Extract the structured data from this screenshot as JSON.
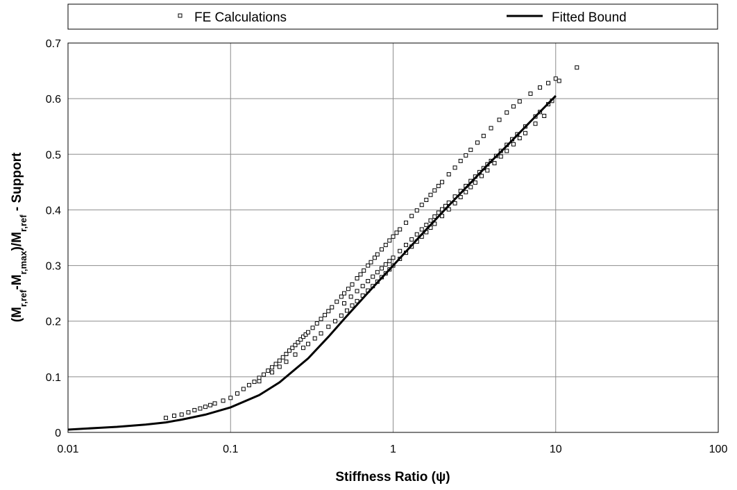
{
  "chart_data": {
    "type": "scatter",
    "x_scale": "log",
    "xlim": [
      0.01,
      100
    ],
    "ylim": [
      0,
      0.7
    ],
    "grid": true,
    "legend_placement": "top",
    "xlabel": "Stiffness Ratio (ψ)",
    "ylabel": {
      "parts": [
        {
          "t": "(M",
          "sub": false
        },
        {
          "t": "r,ref",
          "sub": true
        },
        {
          "t": "-M",
          "sub": false
        },
        {
          "t": "r,max",
          "sub": true
        },
        {
          "t": ")/M",
          "sub": false
        },
        {
          "t": "r,ref",
          "sub": true
        },
        {
          "t": " - Support",
          "sub": false
        }
      ]
    },
    "x_ticks": [
      {
        "value": 0.01,
        "label": "0.01"
      },
      {
        "value": 0.1,
        "label": "0.1"
      },
      {
        "value": 1,
        "label": "1"
      },
      {
        "value": 10,
        "label": "10"
      },
      {
        "value": 100,
        "label": "100"
      }
    ],
    "y_ticks": [
      {
        "value": 0,
        "label": "0"
      },
      {
        "value": 0.1,
        "label": "0.1"
      },
      {
        "value": 0.2,
        "label": "0.2"
      },
      {
        "value": 0.3,
        "label": "0.3"
      },
      {
        "value": 0.4,
        "label": "0.4"
      },
      {
        "value": 0.5,
        "label": "0.5"
      },
      {
        "value": 0.6,
        "label": "0.6"
      },
      {
        "value": 0.7,
        "label": "0.7"
      }
    ],
    "series": [
      {
        "name": "FE Calculations",
        "kind": "scatter",
        "marker": "open-square",
        "color": "#000000",
        "x": [
          0.04,
          0.045,
          0.05,
          0.055,
          0.06,
          0.065,
          0.07,
          0.075,
          0.08,
          0.09,
          0.1,
          0.11,
          0.12,
          0.13,
          0.14,
          0.15,
          0.16,
          0.17,
          0.18,
          0.19,
          0.2,
          0.21,
          0.22,
          0.23,
          0.24,
          0.25,
          0.26,
          0.27,
          0.28,
          0.29,
          0.3,
          0.32,
          0.34,
          0.36,
          0.38,
          0.4,
          0.42,
          0.45,
          0.48,
          0.5,
          0.53,
          0.56,
          0.6,
          0.63,
          0.66,
          0.7,
          0.73,
          0.77,
          0.8,
          0.85,
          0.9,
          0.95,
          1.0,
          1.05,
          1.1,
          1.2,
          1.3,
          1.4,
          1.5,
          1.6,
          1.7,
          1.8,
          1.9,
          2.0,
          2.2,
          2.4,
          2.6,
          2.8,
          3.0,
          3.3,
          3.6,
          4.0,
          4.5,
          5.0,
          5.5,
          6.0,
          7.0,
          8.0,
          9.0,
          10.0,
          0.15,
          0.18,
          0.2,
          0.22,
          0.25,
          0.28,
          0.3,
          0.33,
          0.36,
          0.4,
          0.44,
          0.48,
          0.52,
          0.56,
          0.6,
          0.65,
          0.7,
          0.75,
          0.8,
          0.85,
          0.9,
          0.95,
          1.0,
          1.1,
          1.2,
          1.3,
          1.4,
          1.5,
          1.6,
          1.7,
          1.8,
          2.0,
          2.2,
          2.4,
          2.6,
          2.8,
          3.0,
          3.2,
          3.5,
          3.8,
          4.2,
          4.6,
          5.0,
          5.5,
          6.0,
          6.5,
          7.5,
          8.5,
          0.5,
          0.55,
          0.6,
          0.65,
          0.7,
          0.75,
          0.8,
          0.85,
          0.9,
          0.95,
          1.0,
          1.1,
          1.2,
          1.3,
          1.4,
          1.5,
          1.6,
          1.7,
          1.8,
          1.9,
          2.0,
          2.1,
          2.2,
          2.4,
          2.6,
          2.8,
          3.0,
          3.2,
          3.4,
          3.6,
          3.8,
          4.0,
          4.3,
          4.6,
          5.0,
          5.4,
          5.8,
          6.5,
          7.5,
          8.0,
          9.0,
          9.5,
          10.5,
          13.5
        ],
        "y": [
          0.026,
          0.03,
          0.032,
          0.036,
          0.04,
          0.043,
          0.046,
          0.049,
          0.052,
          0.057,
          0.062,
          0.07,
          0.078,
          0.085,
          0.091,
          0.098,
          0.104,
          0.111,
          0.117,
          0.123,
          0.129,
          0.135,
          0.141,
          0.147,
          0.152,
          0.157,
          0.162,
          0.167,
          0.172,
          0.176,
          0.18,
          0.188,
          0.196,
          0.204,
          0.211,
          0.218,
          0.225,
          0.235,
          0.244,
          0.25,
          0.258,
          0.266,
          0.277,
          0.284,
          0.291,
          0.3,
          0.306,
          0.314,
          0.32,
          0.329,
          0.337,
          0.345,
          0.352,
          0.359,
          0.365,
          0.377,
          0.389,
          0.399,
          0.409,
          0.418,
          0.427,
          0.435,
          0.443,
          0.45,
          0.464,
          0.476,
          0.488,
          0.498,
          0.508,
          0.521,
          0.533,
          0.547,
          0.562,
          0.575,
          0.586,
          0.595,
          0.609,
          0.62,
          0.628,
          0.636,
          0.092,
          0.108,
          0.118,
          0.127,
          0.14,
          0.152,
          0.159,
          0.169,
          0.178,
          0.19,
          0.2,
          0.21,
          0.219,
          0.228,
          0.236,
          0.246,
          0.255,
          0.263,
          0.271,
          0.279,
          0.286,
          0.293,
          0.3,
          0.312,
          0.323,
          0.334,
          0.343,
          0.352,
          0.36,
          0.368,
          0.375,
          0.389,
          0.401,
          0.412,
          0.423,
          0.432,
          0.441,
          0.449,
          0.461,
          0.471,
          0.484,
          0.496,
          0.506,
          0.518,
          0.529,
          0.538,
          0.555,
          0.569,
          0.232,
          0.244,
          0.254,
          0.263,
          0.272,
          0.28,
          0.288,
          0.295,
          0.302,
          0.308,
          0.314,
          0.326,
          0.337,
          0.347,
          0.356,
          0.365,
          0.373,
          0.381,
          0.388,
          0.395,
          0.401,
          0.407,
          0.413,
          0.424,
          0.434,
          0.443,
          0.452,
          0.46,
          0.468,
          0.475,
          0.482,
          0.488,
          0.497,
          0.506,
          0.517,
          0.527,
          0.536,
          0.55,
          0.568,
          0.576,
          0.59,
          0.596,
          0.632,
          0.656
        ]
      },
      {
        "name": "Fitted Bound",
        "kind": "line",
        "color": "#000000",
        "x": [
          0.01,
          0.015,
          0.02,
          0.03,
          0.04,
          0.05,
          0.07,
          0.1,
          0.15,
          0.2,
          0.3,
          0.4,
          0.5,
          0.7,
          1.0,
          1.5,
          2.0,
          3.0,
          4.0,
          5.0,
          7.0,
          10.0
        ],
        "y": [
          0.005,
          0.008,
          0.01,
          0.014,
          0.018,
          0.023,
          0.032,
          0.045,
          0.067,
          0.09,
          0.133,
          0.172,
          0.204,
          0.251,
          0.3,
          0.356,
          0.395,
          0.449,
          0.487,
          0.515,
          0.559,
          0.605
        ]
      }
    ]
  }
}
